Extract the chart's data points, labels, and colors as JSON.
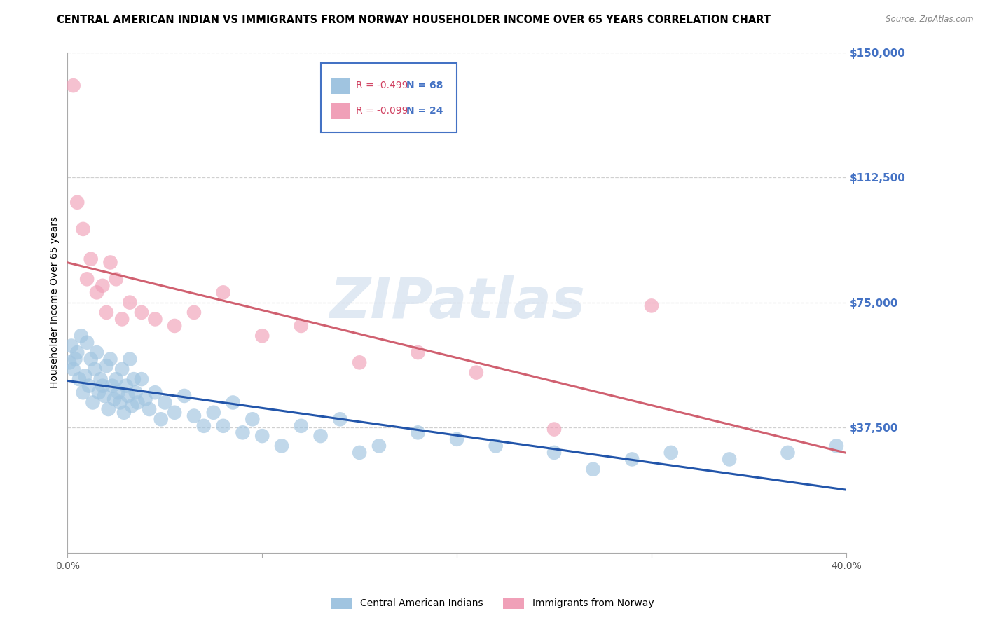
{
  "title": "CENTRAL AMERICAN INDIAN VS IMMIGRANTS FROM NORWAY HOUSEHOLDER INCOME OVER 65 YEARS CORRELATION CHART",
  "source": "Source: ZipAtlas.com",
  "ylabel": "Householder Income Over 65 years",
  "xlim": [
    0.0,
    0.4
  ],
  "ylim": [
    0,
    150000
  ],
  "yticks": [
    0,
    37500,
    75000,
    112500,
    150000
  ],
  "ytick_labels": [
    "",
    "$37,500",
    "$75,000",
    "$112,500",
    "$150,000"
  ],
  "xticks": [
    0.0,
    0.1,
    0.2,
    0.3,
    0.4
  ],
  "xtick_labels": [
    "0.0%",
    "",
    "",
    "",
    "40.0%"
  ],
  "grid_color": "#d0d0d0",
  "bg_color": "#ffffff",
  "watermark": "ZIPatlas",
  "watermark_color": "#c8d8ea",
  "ytick_color": "#4472c4",
  "legend_border_color": "#4472c4",
  "R_text_color": "#d04060",
  "N_text_color": "#4472c4",
  "series": [
    {
      "name": "Central American Indians",
      "R": -0.499,
      "N": 68,
      "color": "#a0c4e0",
      "line_color": "#2255aa",
      "x": [
        0.001,
        0.002,
        0.003,
        0.004,
        0.005,
        0.006,
        0.007,
        0.008,
        0.009,
        0.01,
        0.011,
        0.012,
        0.013,
        0.014,
        0.015,
        0.016,
        0.017,
        0.018,
        0.019,
        0.02,
        0.021,
        0.022,
        0.023,
        0.024,
        0.025,
        0.026,
        0.027,
        0.028,
        0.029,
        0.03,
        0.031,
        0.032,
        0.033,
        0.034,
        0.035,
        0.036,
        0.038,
        0.04,
        0.042,
        0.045,
        0.048,
        0.05,
        0.055,
        0.06,
        0.065,
        0.07,
        0.075,
        0.08,
        0.085,
        0.09,
        0.095,
        0.1,
        0.11,
        0.12,
        0.13,
        0.14,
        0.15,
        0.16,
        0.18,
        0.2,
        0.22,
        0.25,
        0.27,
        0.29,
        0.31,
        0.34,
        0.37,
        0.395
      ],
      "y": [
        57000,
        62000,
        55000,
        58000,
        60000,
        52000,
        65000,
        48000,
        53000,
        63000,
        50000,
        58000,
        45000,
        55000,
        60000,
        48000,
        52000,
        50000,
        47000,
        56000,
        43000,
        58000,
        50000,
        46000,
        52000,
        48000,
        45000,
        55000,
        42000,
        50000,
        47000,
        58000,
        44000,
        52000,
        48000,
        45000,
        52000,
        46000,
        43000,
        48000,
        40000,
        45000,
        42000,
        47000,
        41000,
        38000,
        42000,
        38000,
        45000,
        36000,
        40000,
        35000,
        32000,
        38000,
        35000,
        40000,
        30000,
        32000,
        36000,
        34000,
        32000,
        30000,
        25000,
        28000,
        30000,
        28000,
        30000,
        32000
      ]
    },
    {
      "name": "Immigrants from Norway",
      "R": -0.099,
      "N": 24,
      "color": "#f0a0b8",
      "line_color": "#d06070",
      "x": [
        0.003,
        0.005,
        0.008,
        0.01,
        0.012,
        0.015,
        0.018,
        0.02,
        0.022,
        0.025,
        0.028,
        0.032,
        0.038,
        0.045,
        0.055,
        0.065,
        0.08,
        0.1,
        0.12,
        0.15,
        0.18,
        0.21,
        0.25,
        0.3
      ],
      "y": [
        140000,
        105000,
        97000,
        82000,
        88000,
        78000,
        80000,
        72000,
        87000,
        82000,
        70000,
        75000,
        72000,
        70000,
        68000,
        72000,
        78000,
        65000,
        68000,
        57000,
        60000,
        54000,
        37000,
        74000
      ]
    }
  ]
}
